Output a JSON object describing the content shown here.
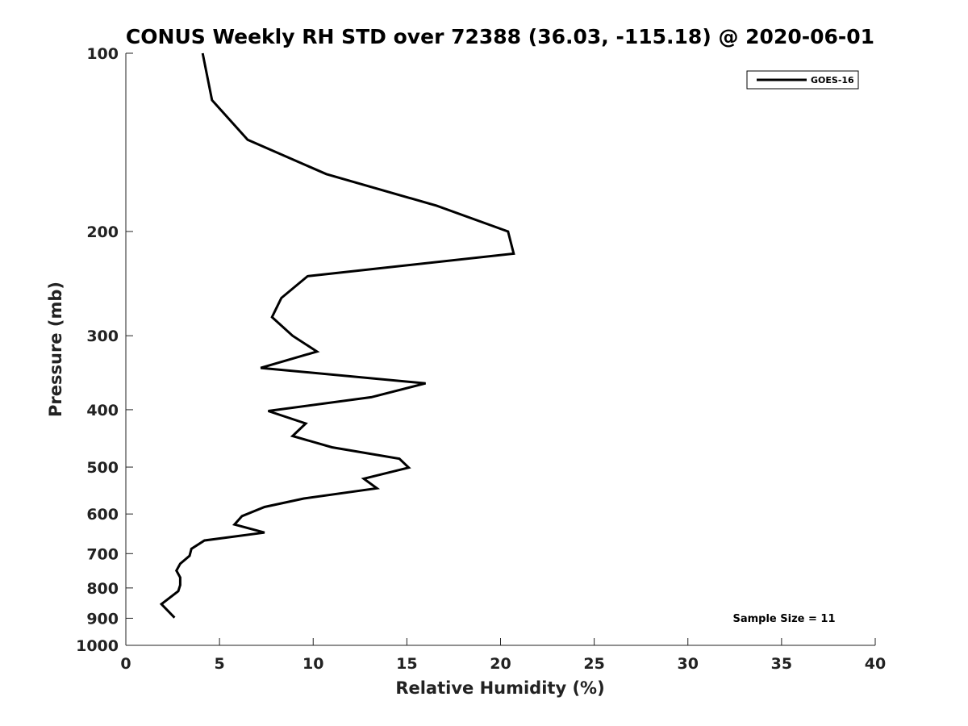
{
  "chart_data": {
    "type": "line",
    "title": "CONUS Weekly RH STD over 72388 (36.03, -115.18) @ 2020-06-01",
    "xlabel": "Relative Humidity (%)",
    "ylabel": "Pressure (mb)",
    "xlim": [
      0,
      40
    ],
    "ylim": [
      100,
      1000
    ],
    "y_scale": "log",
    "y_reversed": true,
    "xticks": [
      0,
      5,
      10,
      15,
      20,
      25,
      30,
      35,
      40
    ],
    "xtick_labels": [
      "0",
      "5",
      "10",
      "15",
      "20",
      "25",
      "30",
      "35",
      "40"
    ],
    "yticks": [
      100,
      200,
      300,
      400,
      500,
      600,
      700,
      800,
      900,
      1000
    ],
    "ytick_labels": [
      "100",
      "200",
      "300",
      "400",
      "500",
      "600",
      "700",
      "800",
      "900",
      "1000"
    ],
    "grid": false,
    "legend_position": "top-right",
    "series": [
      {
        "name": "GOES-16",
        "color": "#000000",
        "points": [
          [
            4.1,
            100
          ],
          [
            4.6,
            120
          ],
          [
            6.5,
            140
          ],
          [
            10.7,
            160
          ],
          [
            16.6,
            181
          ],
          [
            20.4,
            200
          ],
          [
            20.7,
            218
          ],
          [
            9.7,
            238
          ],
          [
            8.3,
            259
          ],
          [
            7.8,
            279
          ],
          [
            8.9,
            300
          ],
          [
            10.2,
            319
          ],
          [
            7.2,
            340
          ],
          [
            16.0,
            361
          ],
          [
            13.1,
            381
          ],
          [
            7.6,
            402
          ],
          [
            9.6,
            422
          ],
          [
            8.9,
            443
          ],
          [
            11.0,
            463
          ],
          [
            14.6,
            484
          ],
          [
            15.1,
            501
          ],
          [
            12.7,
            523
          ],
          [
            13.4,
            543
          ],
          [
            9.5,
            565
          ],
          [
            7.4,
            584
          ],
          [
            6.2,
            605
          ],
          [
            5.8,
            625
          ],
          [
            7.4,
            645
          ],
          [
            4.2,
            665
          ],
          [
            3.5,
            687
          ],
          [
            3.4,
            706
          ],
          [
            2.9,
            728
          ],
          [
            2.7,
            748
          ],
          [
            2.9,
            768
          ],
          [
            2.9,
            791
          ],
          [
            2.8,
            810
          ],
          [
            1.9,
            852
          ],
          [
            2.6,
            898
          ]
        ]
      }
    ],
    "annotation": "Sample Size = 11"
  }
}
